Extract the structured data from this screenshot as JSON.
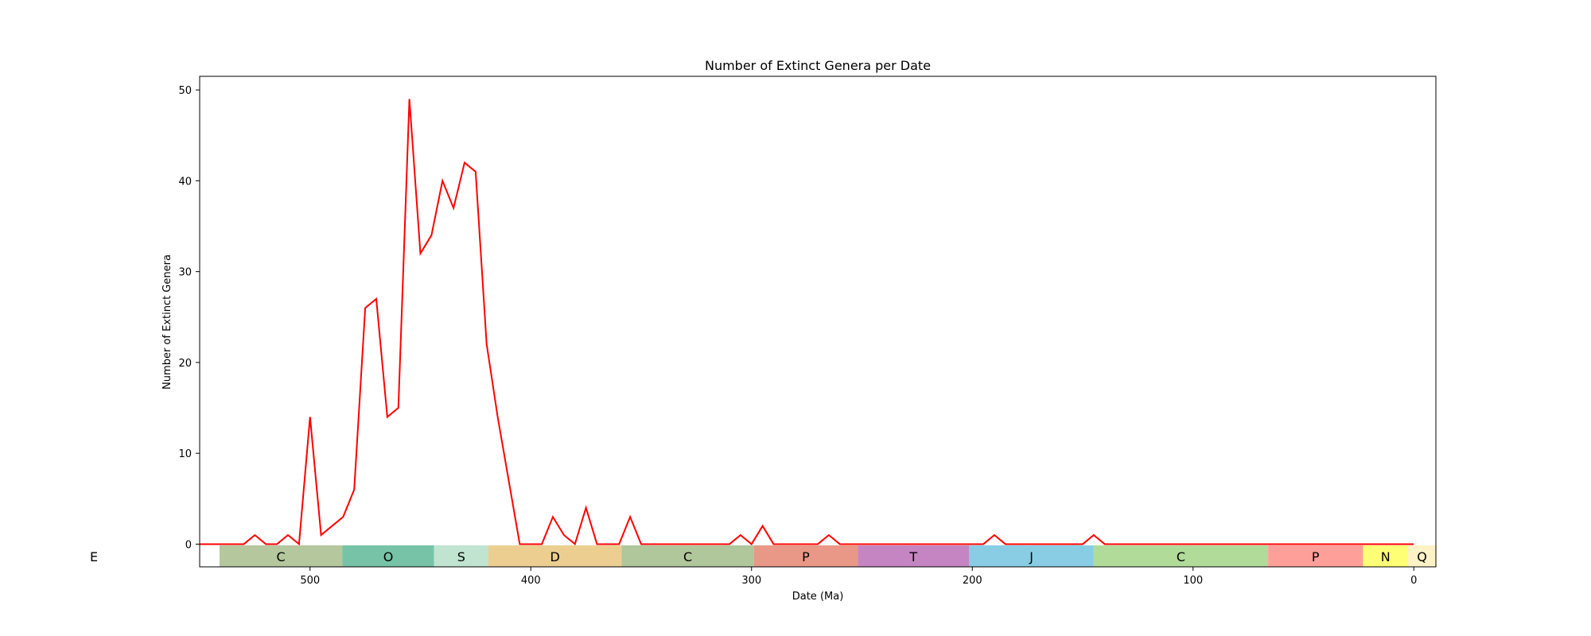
{
  "chart_data": {
    "type": "line",
    "title": "Number of Extinct Genera per Date",
    "xlabel": "Date (Ma)",
    "ylabel": "Number of Extinct Genera",
    "xlim": [
      550,
      -10
    ],
    "ylim": [
      -2.5,
      51.5
    ],
    "x_ticks": [
      500,
      400,
      300,
      200,
      100,
      0
    ],
    "y_ticks": [
      0,
      10,
      20,
      30,
      40,
      50
    ],
    "grid": false,
    "series": [
      {
        "color": "#ff0000",
        "points": [
          [
            550,
            0
          ],
          [
            545,
            0
          ],
          [
            540,
            0
          ],
          [
            535,
            0
          ],
          [
            530,
            0
          ],
          [
            525,
            1
          ],
          [
            520,
            0
          ],
          [
            515,
            0
          ],
          [
            510,
            1
          ],
          [
            505,
            0
          ],
          [
            500,
            14
          ],
          [
            495,
            1
          ],
          [
            490,
            2
          ],
          [
            485,
            3
          ],
          [
            480,
            6
          ],
          [
            475,
            26
          ],
          [
            470,
            27
          ],
          [
            465,
            14
          ],
          [
            460,
            15
          ],
          [
            455,
            49
          ],
          [
            450,
            32
          ],
          [
            445,
            34
          ],
          [
            440,
            40
          ],
          [
            435,
            37
          ],
          [
            430,
            42
          ],
          [
            425,
            41
          ],
          [
            420,
            22
          ],
          [
            415,
            14
          ],
          [
            410,
            7
          ],
          [
            405,
            0
          ],
          [
            400,
            0
          ],
          [
            395,
            0
          ],
          [
            390,
            3
          ],
          [
            385,
            1
          ],
          [
            380,
            0
          ],
          [
            375,
            4
          ],
          [
            370,
            0
          ],
          [
            365,
            0
          ],
          [
            360,
            0
          ],
          [
            355,
            3
          ],
          [
            350,
            0
          ],
          [
            345,
            0
          ],
          [
            340,
            0
          ],
          [
            335,
            0
          ],
          [
            330,
            0
          ],
          [
            325,
            0
          ],
          [
            320,
            0
          ],
          [
            315,
            0
          ],
          [
            310,
            0
          ],
          [
            305,
            1
          ],
          [
            300,
            0
          ],
          [
            295,
            2
          ],
          [
            290,
            0
          ],
          [
            285,
            0
          ],
          [
            280,
            0
          ],
          [
            275,
            0
          ],
          [
            270,
            0
          ],
          [
            265,
            1
          ],
          [
            260,
            0
          ],
          [
            255,
            0
          ],
          [
            250,
            0
          ],
          [
            245,
            0
          ],
          [
            240,
            0
          ],
          [
            235,
            0
          ],
          [
            230,
            0
          ],
          [
            225,
            0
          ],
          [
            220,
            0
          ],
          [
            215,
            0
          ],
          [
            210,
            0
          ],
          [
            205,
            0
          ],
          [
            200,
            0
          ],
          [
            195,
            0
          ],
          [
            190,
            1
          ],
          [
            185,
            0
          ],
          [
            180,
            0
          ],
          [
            175,
            0
          ],
          [
            170,
            0
          ],
          [
            165,
            0
          ],
          [
            160,
            0
          ],
          [
            155,
            0
          ],
          [
            150,
            0
          ],
          [
            145,
            1
          ],
          [
            140,
            0
          ],
          [
            135,
            0
          ],
          [
            130,
            0
          ],
          [
            125,
            0
          ],
          [
            120,
            0
          ],
          [
            115,
            0
          ],
          [
            110,
            0
          ],
          [
            105,
            0
          ],
          [
            100,
            0
          ],
          [
            95,
            0
          ],
          [
            90,
            0
          ],
          [
            85,
            0
          ],
          [
            80,
            0
          ],
          [
            75,
            0
          ],
          [
            70,
            0
          ],
          [
            65,
            0
          ],
          [
            60,
            0
          ],
          [
            55,
            0
          ],
          [
            50,
            0
          ],
          [
            45,
            0
          ],
          [
            40,
            0
          ],
          [
            35,
            0
          ],
          [
            30,
            0
          ],
          [
            25,
            0
          ],
          [
            20,
            0
          ],
          [
            15,
            0
          ],
          [
            10,
            0
          ],
          [
            5,
            0
          ],
          [
            0,
            0
          ]
        ]
      }
    ],
    "periods": [
      {
        "label": "E",
        "start": 4600,
        "end": 541,
        "color": "#ffffff"
      },
      {
        "label": "C",
        "start": 541,
        "end": 485.4,
        "color": "#b1c497"
      },
      {
        "label": "O",
        "start": 485.4,
        "end": 443.8,
        "color": "#6fc0a3"
      },
      {
        "label": "S",
        "start": 443.8,
        "end": 419.2,
        "color": "#bde3cd"
      },
      {
        "label": "D",
        "start": 419.2,
        "end": 358.9,
        "color": "#eacb8a"
      },
      {
        "label": "C",
        "start": 358.9,
        "end": 298.9,
        "color": "#acc396"
      },
      {
        "label": "P",
        "start": 298.9,
        "end": 251.9,
        "color": "#e8917f"
      },
      {
        "label": "T",
        "start": 251.9,
        "end": 201.4,
        "color": "#c27ec0"
      },
      {
        "label": "J",
        "start": 201.4,
        "end": 145,
        "color": "#82cae3"
      },
      {
        "label": "C",
        "start": 145,
        "end": 66,
        "color": "#add994"
      },
      {
        "label": "P",
        "start": 66,
        "end": 23,
        "color": "#ff9a95"
      },
      {
        "label": "N",
        "start": 23,
        "end": 2.58,
        "color": "#ffff6e"
      },
      {
        "label": "Q",
        "start": 2.58,
        "end": -10,
        "color": "#fff1c4"
      }
    ]
  }
}
